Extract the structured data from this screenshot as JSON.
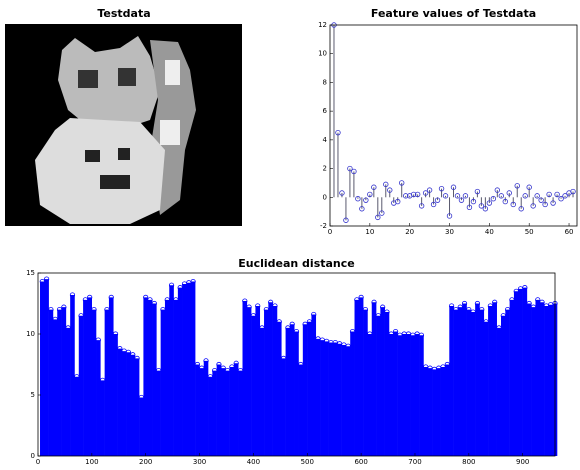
{
  "image": {
    "title": "Testdata"
  },
  "chart_data": [
    {
      "type": "stem",
      "title": "Feature values of Testdata",
      "color": "#5a5a6e",
      "marker_color": "#3333cc",
      "x": [
        1,
        2,
        3,
        4,
        5,
        6,
        7,
        8,
        9,
        10,
        11,
        12,
        13,
        14,
        15,
        16,
        17,
        18,
        19,
        20,
        21,
        22,
        23,
        24,
        25,
        26,
        27,
        28,
        29,
        30,
        31,
        32,
        33,
        34,
        35,
        36,
        37,
        38,
        39,
        40,
        41,
        42,
        43,
        44,
        45,
        46,
        47,
        48,
        49,
        50,
        51,
        52,
        53,
        54,
        55,
        56,
        57,
        58,
        59,
        60,
        61
      ],
      "values": [
        12,
        4.5,
        0.3,
        -1.6,
        2.0,
        1.8,
        -0.1,
        -0.8,
        -0.2,
        0.2,
        0.7,
        -1.4,
        -1.1,
        0.9,
        0.5,
        -0.4,
        -0.3,
        1.0,
        0.1,
        0.1,
        0.2,
        0.2,
        -0.6,
        0.3,
        0.5,
        -0.5,
        -0.2,
        0.6,
        0.1,
        -1.3,
        0.7,
        0.1,
        -0.2,
        0.1,
        -0.7,
        -0.3,
        0.4,
        -0.6,
        -0.8,
        -0.4,
        -0.1,
        0.5,
        0.1,
        -0.3,
        0.3,
        -0.5,
        0.8,
        -0.8,
        0.1,
        0.7,
        -0.6,
        0.1,
        -0.2,
        -0.5,
        0.2,
        -0.4,
        0.2,
        -0.1,
        0.1,
        0.3,
        0.4
      ],
      "xlim": [
        0,
        62
      ],
      "xticks": [
        0,
        10,
        20,
        30,
        40,
        50,
        60
      ],
      "ylim": [
        -2,
        12
      ],
      "yticks": [
        -2,
        0,
        2,
        4,
        6,
        8,
        10,
        12
      ]
    },
    {
      "type": "stem",
      "title": "Euclidean distance",
      "color": "#0000ff",
      "marker_color": "#0000ff",
      "x": [
        8,
        16,
        24,
        32,
        40,
        48,
        56,
        64,
        72,
        80,
        88,
        96,
        104,
        112,
        120,
        128,
        136,
        144,
        152,
        160,
        168,
        176,
        184,
        192,
        200,
        208,
        216,
        224,
        232,
        240,
        248,
        256,
        264,
        272,
        280,
        288,
        296,
        304,
        312,
        320,
        328,
        336,
        344,
        352,
        360,
        368,
        376,
        384,
        392,
        400,
        408,
        416,
        424,
        432,
        440,
        448,
        456,
        464,
        472,
        480,
        488,
        496,
        504,
        512,
        520,
        528,
        536,
        544,
        552,
        560,
        568,
        576,
        584,
        592,
        600,
        608,
        616,
        624,
        632,
        640,
        648,
        656,
        664,
        672,
        680,
        688,
        696,
        704,
        712,
        720,
        728,
        736,
        744,
        752,
        760,
        768,
        776,
        784,
        792,
        800,
        808,
        816,
        824,
        832,
        840,
        848,
        856,
        864,
        872,
        880,
        888,
        896,
        904,
        912,
        920,
        928,
        936,
        944,
        952,
        960
      ],
      "values": [
        14.3,
        14.5,
        12.0,
        11.2,
        12.0,
        12.2,
        10.5,
        13.2,
        6.5,
        11.5,
        12.8,
        13.0,
        12.0,
        9.5,
        6.2,
        12.0,
        13.0,
        10.0,
        8.8,
        8.6,
        8.5,
        8.3,
        8.0,
        4.8,
        13.0,
        12.8,
        12.5,
        7.0,
        12.0,
        12.8,
        14.0,
        12.8,
        13.8,
        14.1,
        14.2,
        14.3,
        7.5,
        7.2,
        7.8,
        6.5,
        7.0,
        7.5,
        7.2,
        7.0,
        7.3,
        7.6,
        7.0,
        12.7,
        12.2,
        11.5,
        12.3,
        10.5,
        12.0,
        12.6,
        12.3,
        11.0,
        8.0,
        10.5,
        10.8,
        10.2,
        7.5,
        10.8,
        11.0,
        11.6,
        9.6,
        9.5,
        9.4,
        9.3,
        9.3,
        9.2,
        9.1,
        9.0,
        10.2,
        12.8,
        13.0,
        12.0,
        10.0,
        12.6,
        11.5,
        12.2,
        11.8,
        10.0,
        10.2,
        9.9,
        10.0,
        10.0,
        9.9,
        10.0,
        9.9,
        7.3,
        7.2,
        7.1,
        7.2,
        7.3,
        7.5,
        12.3,
        12.0,
        12.2,
        12.5,
        12.0,
        11.8,
        12.5,
        12.0,
        11.0,
        12.3,
        12.6,
        10.5,
        11.5,
        12.0,
        12.8,
        13.5,
        13.7,
        13.8,
        12.5,
        12.2,
        12.8,
        12.6,
        12.3,
        12.4,
        12.5
      ],
      "xlim": [
        0,
        960
      ],
      "xticks": [
        0,
        100,
        200,
        300,
        400,
        500,
        600,
        700,
        800,
        900
      ],
      "ylim": [
        0,
        15
      ],
      "yticks": [
        0,
        5,
        10,
        15
      ]
    }
  ]
}
